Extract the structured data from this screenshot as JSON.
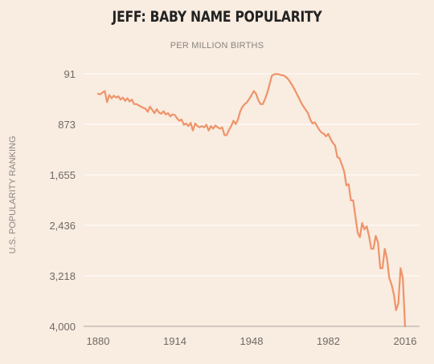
{
  "chart_data": {
    "type": "line",
    "title": "JEFF: BABY NAME POPULARITY",
    "subtitle": "PER MILLION BIRTHS",
    "ylabel": "U.S. POPULARITY RANKING",
    "xlabel": "",
    "y_inverted": true,
    "ylim": [
      91,
      4000
    ],
    "xlim": [
      1880,
      2016
    ],
    "x_ticks": [
      "1880",
      "1914",
      "1948",
      "1982",
      "2016"
    ],
    "y_ticks": [
      "91",
      "873",
      "1,655",
      "2,436",
      "3,218",
      "4,000"
    ],
    "grid": "horizontal",
    "color": "#ee936a",
    "series": [
      {
        "x": [
          1880,
          1881,
          1882,
          1883,
          1884,
          1885,
          1886,
          1887,
          1888,
          1889,
          1890,
          1891,
          1892,
          1893,
          1894,
          1895,
          1896,
          1897,
          1898,
          1899,
          1900,
          1901,
          1902,
          1903,
          1904,
          1905,
          1906,
          1907,
          1908,
          1909,
          1910,
          1911,
          1912,
          1913,
          1914,
          1915,
          1916,
          1917,
          1918,
          1919,
          1920,
          1921,
          1922,
          1923,
          1924,
          1925,
          1926,
          1927,
          1928,
          1929,
          1930,
          1931,
          1932,
          1933,
          1934,
          1935,
          1936,
          1937,
          1938,
          1939,
          1940,
          1941,
          1942,
          1943,
          1944,
          1945,
          1946,
          1947,
          1948,
          1949,
          1950,
          1951,
          1952,
          1953,
          1954,
          1955,
          1956,
          1957,
          1958,
          1959,
          1960,
          1961,
          1962,
          1963,
          1964,
          1965,
          1966,
          1967,
          1968,
          1969,
          1970,
          1971,
          1972,
          1973,
          1974,
          1975,
          1976,
          1977,
          1978,
          1979,
          1980,
          1981,
          1982,
          1983,
          1984,
          1985,
          1986,
          1987,
          1988,
          1989,
          1990,
          1991,
          1992,
          1993,
          1994,
          1995,
          1996,
          1997,
          1998,
          1999,
          2000,
          2001,
          2002,
          2003,
          2004,
          2005,
          2006,
          2007,
          2008,
          2009,
          2010,
          2011,
          2012,
          2013,
          2014,
          2015,
          2016
        ],
        "values": [
          400,
          410,
          380,
          360,
          530,
          420,
          470,
          430,
          460,
          440,
          490,
          460,
          510,
          470,
          520,
          490,
          560,
          560,
          580,
          600,
          620,
          630,
          680,
          600,
          650,
          700,
          640,
          690,
          710,
          670,
          720,
          700,
          750,
          720,
          730,
          780,
          820,
          800,
          880,
          860,
          900,
          850,
          970,
          860,
          900,
          920,
          900,
          920,
          880,
          970,
          900,
          940,
          890,
          920,
          940,
          920,
          1040,
          1040,
          960,
          900,
          820,
          870,
          800,
          670,
          600,
          560,
          530,
          480,
          420,
          360,
          400,
          500,
          560,
          560,
          480,
          380,
          250,
          120,
          100,
          95,
          100,
          110,
          115,
          135,
          165,
          215,
          270,
          330,
          400,
          470,
          540,
          600,
          650,
          700,
          800,
          860,
          840,
          900,
          960,
          1000,
          1020,
          1060,
          1020,
          1100,
          1160,
          1200,
          1380,
          1400,
          1500,
          1600,
          1820,
          1800,
          2050,
          2050,
          2300,
          2550,
          2620,
          2400,
          2500,
          2450,
          2600,
          2800,
          2800,
          2600,
          2700,
          3100,
          3100,
          2800,
          2950,
          3250,
          3350,
          3500,
          3750,
          3650,
          3100,
          3250,
          4000
        ]
      }
    ]
  }
}
